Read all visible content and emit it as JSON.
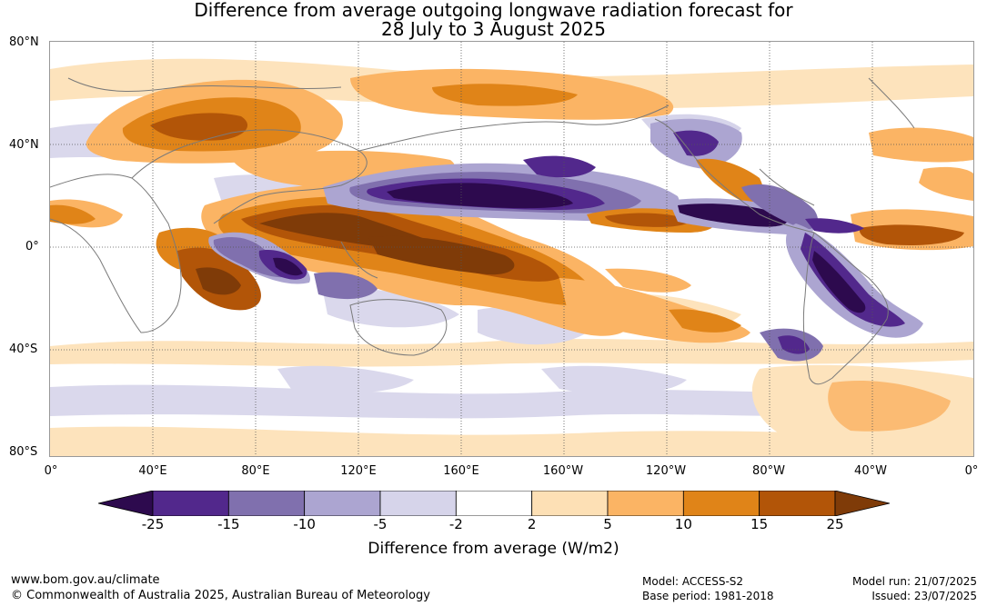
{
  "title": {
    "line1": "Difference from average outgoing longwave radiation forecast for",
    "line2": "28 July to 3 August 2025"
  },
  "map": {
    "lat_labels": [
      "80°N",
      "40°N",
      "0°",
      "40°S",
      "80°S"
    ],
    "lon_labels": [
      "0°",
      "40°E",
      "80°E",
      "120°E",
      "160°E",
      "160°W",
      "120°W",
      "80°W",
      "40°W",
      "0°"
    ],
    "colors": {
      "coastline": "#7a7a7a",
      "grid": "#555555"
    }
  },
  "colorbar": {
    "title": "Difference from average (W/m2)",
    "ticks": [
      "-25",
      "-15",
      "-10",
      "-5",
      "-2",
      "2",
      "5",
      "10",
      "15",
      "25"
    ],
    "colors": [
      "#2d0a4e",
      "#52288c",
      "#8070ae",
      "#aca5d1",
      "#d6d4ea",
      "#ffffff",
      "#fde0b5",
      "#fbb464",
      "#e08418",
      "#b25508",
      "#7f3b08"
    ]
  },
  "footer": {
    "website": "www.bom.gov.au/climate",
    "copyright": "© Commonwealth of Australia 2025, Australian Bureau of Meteorology",
    "model": "Model: ACCESS-S2",
    "base_period": "Base period: 1981-2018",
    "model_run": "Model run: 21/07/2025",
    "issued": "Issued: 23/07/2025"
  }
}
